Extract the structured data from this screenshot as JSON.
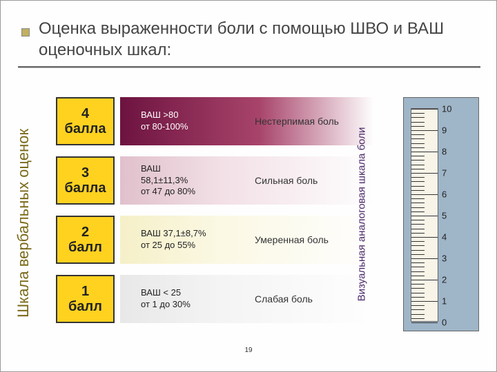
{
  "title": "Оценка выраженности боли с помощью ШВО и ВАШ оценочных шкал:",
  "leftLabel": "Шкала вербальных оценок",
  "rightLabel": "Визуальная аналоговая шкала боли",
  "pageNumber": "19",
  "rows": [
    {
      "scoreTop": "4",
      "scoreBottom": "балла",
      "vas1": "ВАШ >80",
      "vas2": "от 80-100%",
      "desc": "Нестерпимая боль"
    },
    {
      "scoreTop": "3",
      "scoreBottom": "балла",
      "vas1": "ВАШ",
      "vas2": "58,1±11,3%",
      "vas3": "от 47 до 80%",
      "desc": "Сильная боль"
    },
    {
      "scoreTop": "2",
      "scoreBottom": "балл",
      "vas1": "ВАШ 37,1±8,7%",
      "vas2": "от 25 до 55%",
      "desc": "Умеренная боль"
    },
    {
      "scoreTop": "1",
      "scoreBottom": "балл",
      "vas1": "ВАШ < 25",
      "vas2": "от 1 до 30%",
      "desc": "Слабая боль"
    }
  ],
  "rulerMax": 10,
  "colors": {
    "scoreBg": "#ffd21f",
    "titleColor": "#444444",
    "leftLabelColor": "#7a6a1a",
    "rightLabelColor": "#4a2a6a",
    "rulerBg": "#9fb5c8"
  }
}
